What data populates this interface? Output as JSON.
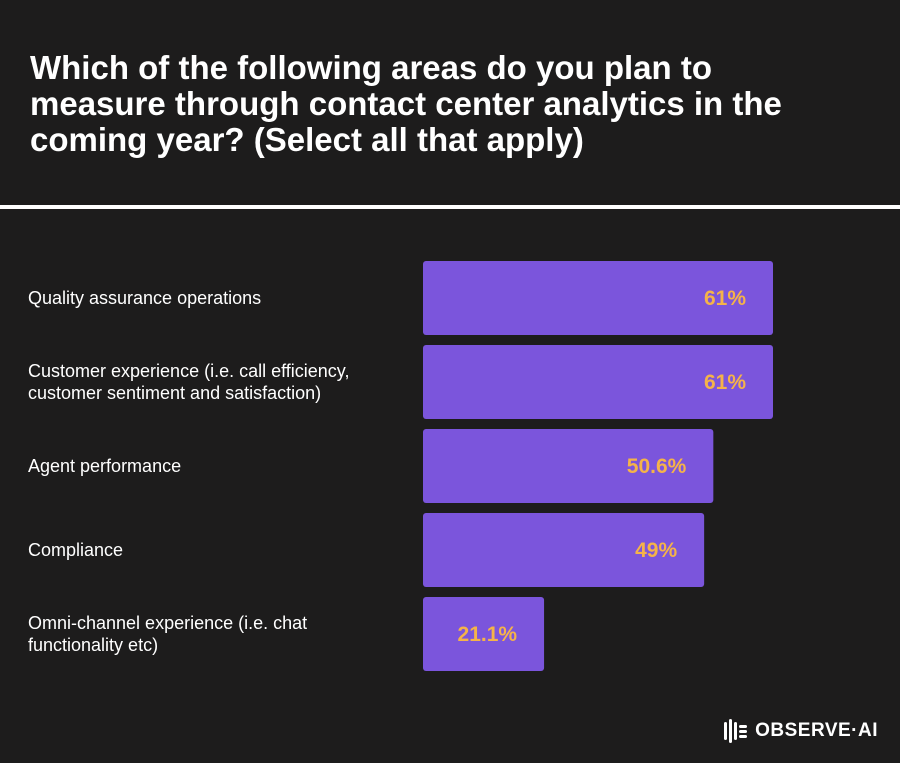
{
  "title": "Which of the following areas do you plan to measure through contact center analytics in the coming year? (Select all that apply)",
  "brand": "OBSERVE·AI",
  "colors": {
    "background": "#1d1c1c",
    "bar": "#7b55dc",
    "value_label": "#f5b349",
    "text": "#ffffff"
  },
  "chart_data": {
    "type": "bar",
    "orientation": "horizontal",
    "categories": [
      [
        "Quality assurance operations"
      ],
      [
        "Customer experience (i.e. call efficiency,",
        "customer sentiment and satisfaction)"
      ],
      [
        "Agent performance"
      ],
      [
        "Compliance"
      ],
      [
        "Omni-channel experience (i.e. chat",
        "functionality etc)"
      ]
    ],
    "values": [
      61,
      61,
      50.6,
      49,
      21.1
    ],
    "value_labels": [
      "61%",
      "61%",
      "50.6%",
      "49%",
      "21.1%"
    ],
    "unit": "%",
    "xlim": [
      0,
      61
    ],
    "grid": false,
    "legend": "none"
  }
}
